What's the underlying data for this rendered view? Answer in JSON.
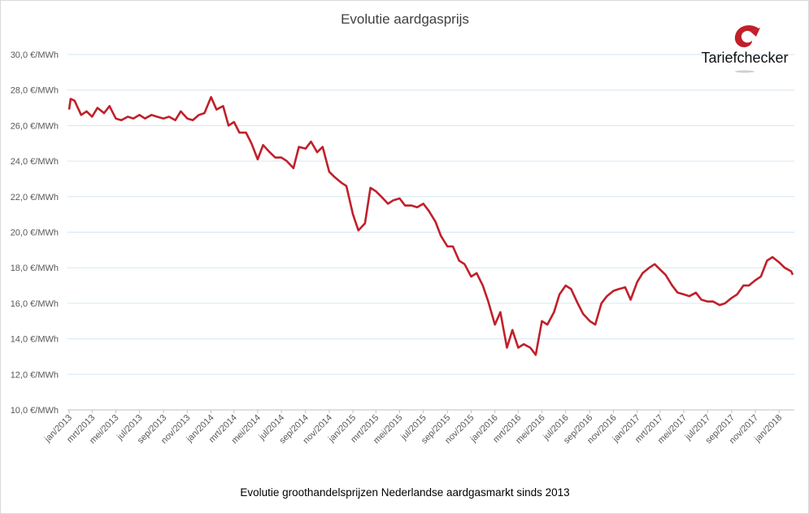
{
  "chart_data": {
    "type": "line",
    "title": "Evolutie aardgasprijs",
    "caption": "Evolutie groothandelsprijzen  Nederlandse aardgasmarkt sinds 2013",
    "xlabel": "",
    "ylabel": "",
    "ylim": [
      10,
      30
    ],
    "grid": true,
    "legend": "none",
    "y_ticks": [
      10,
      12,
      14,
      16,
      18,
      20,
      22,
      24,
      26,
      28,
      30
    ],
    "y_tick_labels": [
      "10,0 €/MWh",
      "12,0 €/MWh",
      "14,0 €/MWh",
      "16,0 €/MWh",
      "18,0 €/MWh",
      "20,0 €/MWh",
      "22,0 €/MWh",
      "24,0 €/MWh",
      "26,0 €/MWh",
      "28,0 €/MWh",
      "30,0 €/MWh"
    ],
    "x_tick_labels": [
      "jan/2013",
      "mrt/2013",
      "mei/2013",
      "jul/2013",
      "sep/2013",
      "nov/2013",
      "jan/2014",
      "mrt/2014",
      "mei/2014",
      "jul/2014",
      "sep/2014",
      "nov/2014",
      "jan/2015",
      "mrt/2015",
      "mei/2015",
      "jul/2015",
      "sep/2015",
      "nov/2015",
      "jan/2016",
      "mrt/2016",
      "mei/2016",
      "jul/2016",
      "sep/2016",
      "nov/2016",
      "jan/2017",
      "mrt/2017",
      "mei/2017",
      "jul/2017",
      "sep/2017",
      "nov/2017",
      "jan/2018"
    ],
    "series": [
      {
        "color": "#c0202a",
        "x": [
          "2013-01-01",
          "2013-01-05",
          "2013-01-15",
          "2013-02-01",
          "2013-02-15",
          "2013-03-01",
          "2013-03-15",
          "2013-04-01",
          "2013-04-15",
          "2013-05-01",
          "2013-05-15",
          "2013-06-01",
          "2013-06-15",
          "2013-07-01",
          "2013-07-15",
          "2013-08-01",
          "2013-08-15",
          "2013-09-01",
          "2013-09-15",
          "2013-10-01",
          "2013-10-15",
          "2013-11-01",
          "2013-11-15",
          "2013-12-01",
          "2013-12-15",
          "2014-01-01",
          "2014-01-15",
          "2014-02-01",
          "2014-02-15",
          "2014-03-01",
          "2014-03-15",
          "2014-04-01",
          "2014-04-15",
          "2014-05-01",
          "2014-05-15",
          "2014-06-01",
          "2014-06-15",
          "2014-07-01",
          "2014-07-15",
          "2014-08-01",
          "2014-08-15",
          "2014-09-01",
          "2014-09-15",
          "2014-10-01",
          "2014-10-15",
          "2014-11-01",
          "2014-11-15",
          "2014-12-01",
          "2014-12-15",
          "2015-01-01",
          "2015-01-15",
          "2015-02-01",
          "2015-02-15",
          "2015-03-01",
          "2015-03-15",
          "2015-04-01",
          "2015-04-15",
          "2015-05-01",
          "2015-05-15",
          "2015-06-01",
          "2015-06-15",
          "2015-07-01",
          "2015-07-15",
          "2015-08-01",
          "2015-08-15",
          "2015-09-01",
          "2015-09-15",
          "2015-10-01",
          "2015-10-15",
          "2015-11-01",
          "2015-11-15",
          "2015-12-01",
          "2015-12-15",
          "2016-01-01",
          "2016-01-15",
          "2016-02-01",
          "2016-02-15",
          "2016-03-01",
          "2016-03-15",
          "2016-04-01",
          "2016-04-15",
          "2016-05-01",
          "2016-05-15",
          "2016-06-01",
          "2016-06-15",
          "2016-07-01",
          "2016-07-15",
          "2016-08-01",
          "2016-08-15",
          "2016-09-01",
          "2016-09-15",
          "2016-10-01",
          "2016-10-15",
          "2016-11-01",
          "2016-11-15",
          "2016-12-01",
          "2016-12-15",
          "2017-01-01",
          "2017-01-15",
          "2017-02-01",
          "2017-02-15",
          "2017-03-01",
          "2017-03-15",
          "2017-04-01",
          "2017-04-15",
          "2017-05-01",
          "2017-05-15",
          "2017-06-01",
          "2017-06-15",
          "2017-07-01",
          "2017-07-15",
          "2017-08-01",
          "2017-08-15",
          "2017-09-01",
          "2017-09-15",
          "2017-10-01",
          "2017-10-15",
          "2017-11-01",
          "2017-11-15",
          "2017-12-01",
          "2017-12-15",
          "2018-01-01",
          "2018-01-15",
          "2018-02-01",
          "2018-02-05"
        ],
        "values": [
          26.9,
          27.5,
          27.4,
          26.6,
          26.8,
          26.5,
          27.0,
          26.7,
          27.1,
          26.4,
          26.3,
          26.5,
          26.4,
          26.6,
          26.4,
          26.6,
          26.5,
          26.4,
          26.5,
          26.3,
          26.8,
          26.4,
          26.3,
          26.6,
          26.7,
          27.6,
          26.9,
          27.1,
          26.0,
          26.2,
          25.6,
          25.6,
          25.0,
          24.1,
          24.9,
          24.5,
          24.2,
          24.2,
          24.0,
          23.6,
          24.8,
          24.7,
          25.1,
          24.5,
          24.8,
          23.4,
          23.1,
          22.8,
          22.6,
          21.0,
          20.1,
          20.5,
          22.5,
          22.3,
          22.0,
          21.6,
          21.8,
          21.9,
          21.5,
          21.5,
          21.4,
          21.6,
          21.2,
          20.6,
          19.8,
          19.2,
          19.2,
          18.4,
          18.2,
          17.5,
          17.7,
          17.0,
          16.1,
          14.8,
          15.5,
          13.5,
          14.5,
          13.5,
          13.7,
          13.5,
          13.1,
          15.0,
          14.8,
          15.5,
          16.5,
          17.0,
          16.8,
          16.0,
          15.4,
          15.0,
          14.8,
          16.0,
          16.4,
          16.7,
          16.8,
          16.9,
          16.2,
          17.2,
          17.7,
          18.0,
          18.2,
          17.9,
          17.6,
          17.0,
          16.6,
          16.5,
          16.4,
          16.6,
          16.2,
          16.1,
          16.1,
          15.9,
          16.0,
          16.3,
          16.5,
          17.0,
          17.0,
          17.3,
          17.5,
          18.4,
          18.6,
          18.3,
          18.0,
          17.8,
          17.6
        ]
      }
    ]
  },
  "logo": {
    "text": "Tariefchecker"
  }
}
